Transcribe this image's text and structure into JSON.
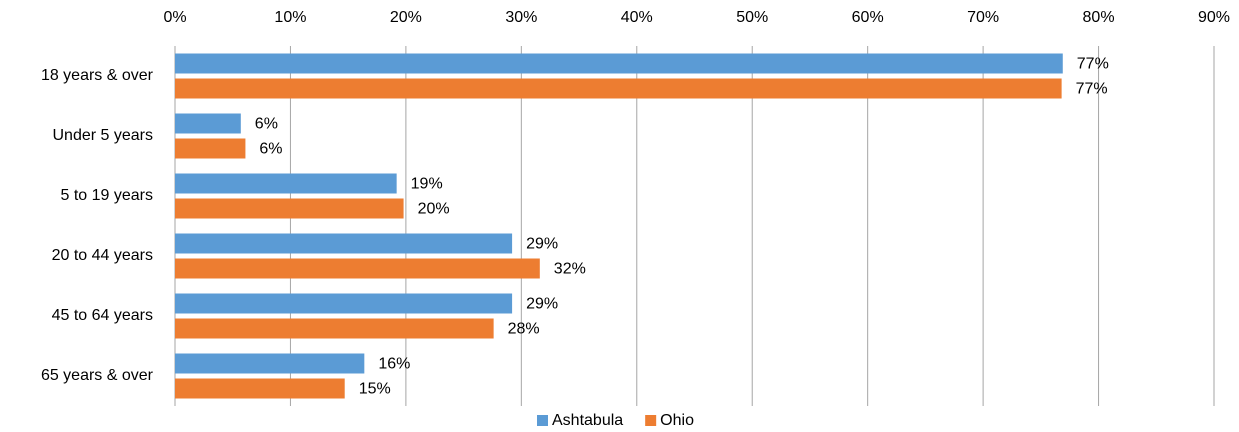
{
  "chart_data": {
    "type": "hbar",
    "categories": [
      "18 years & over",
      "Under 5 years",
      "5 to 19 years",
      "20 to 44 years",
      "45 to 64 years",
      "65 years & over"
    ],
    "series": [
      {
        "name": "Ashtabula",
        "color": "#5b9bd5",
        "label_color": "#2e75b6",
        "values": [
          76.9,
          5.7,
          19.2,
          29.2,
          29.2,
          16.4
        ],
        "value_labels": [
          "77%",
          "6%",
          "19%",
          "29%",
          "29%",
          "16%"
        ]
      },
      {
        "name": "Ohio",
        "color": "#ed7d31",
        "label_color": "#c55a11",
        "values": [
          76.8,
          6.1,
          19.8,
          31.6,
          27.6,
          14.7
        ],
        "value_labels": [
          "77%",
          "6%",
          "20%",
          "32%",
          "28%",
          "15%"
        ]
      }
    ],
    "xlim": [
      0,
      90
    ],
    "xticks": [
      {
        "value": 0,
        "label": "0%"
      },
      {
        "value": 10,
        "label": "10%"
      },
      {
        "value": 20,
        "label": "20%"
      },
      {
        "value": 30,
        "label": "30%"
      },
      {
        "value": 40,
        "label": "40%"
      },
      {
        "value": 50,
        "label": "50%"
      },
      {
        "value": 60,
        "label": "60%"
      },
      {
        "value": 70,
        "label": "70%"
      },
      {
        "value": 80,
        "label": "80%"
      },
      {
        "value": 90,
        "label": "90%"
      }
    ],
    "grid": true,
    "legend": "bottom"
  }
}
